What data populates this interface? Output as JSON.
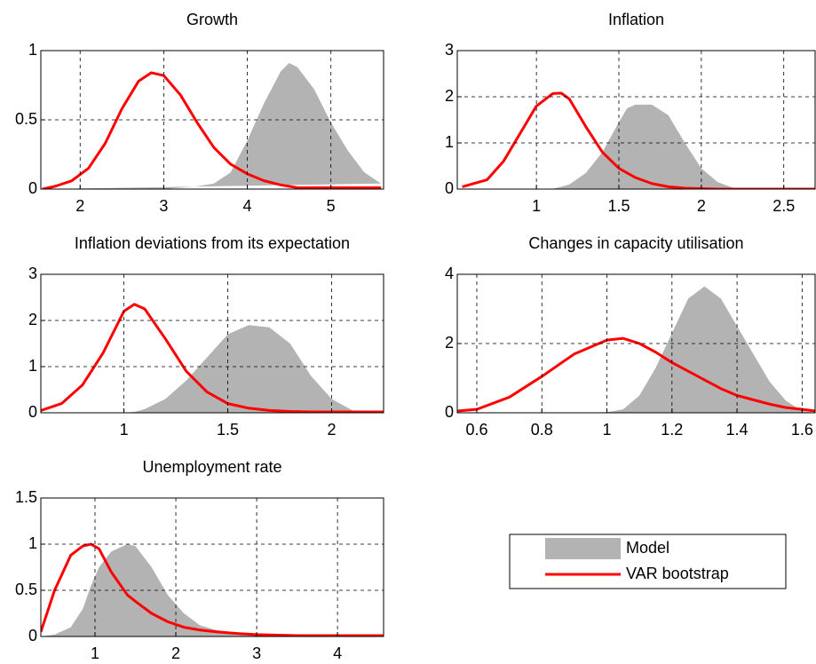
{
  "chart_data": [
    {
      "type": "line",
      "title": "Growth",
      "x": [
        1.55,
        1.7,
        1.9,
        2.1,
        2.3,
        2.5,
        2.7,
        2.85,
        3.0,
        3.2,
        3.4,
        3.6,
        3.8,
        4.0,
        4.2,
        4.4,
        4.5,
        4.6,
        4.8,
        5.0,
        5.2,
        5.4,
        5.6
      ],
      "series": [
        {
          "name": "Model",
          "color": "#b3b3b3",
          "kind": "area",
          "values": [
            0,
            0,
            0,
            0,
            0,
            0,
            0,
            0,
            0,
            0.01,
            0.02,
            0.04,
            0.12,
            0.35,
            0.62,
            0.85,
            0.91,
            0.88,
            0.72,
            0.48,
            0.28,
            0.12,
            0.04
          ]
        },
        {
          "name": "VAR bootstrap",
          "color": "#ff0000",
          "kind": "line",
          "values": [
            0,
            0.02,
            0.06,
            0.15,
            0.33,
            0.58,
            0.78,
            0.84,
            0.82,
            0.68,
            0.48,
            0.3,
            0.18,
            0.11,
            0.06,
            0.03,
            0.02,
            0.01,
            0.01,
            0.01,
            0.01,
            0.01,
            0.01
          ]
        }
      ],
      "xlim": [
        1.53,
        5.63
      ],
      "xticks": [
        2,
        3,
        4,
        5
      ],
      "ylim": [
        0,
        1
      ],
      "yticks": [
        0,
        0.5,
        1
      ],
      "grid": true
    },
    {
      "type": "line",
      "title": "Inflation",
      "x": [
        0.55,
        0.7,
        0.8,
        0.9,
        1.0,
        1.1,
        1.15,
        1.2,
        1.3,
        1.4,
        1.5,
        1.55,
        1.6,
        1.7,
        1.8,
        1.9,
        2.0,
        2.1,
        2.2,
        2.4,
        2.69
      ],
      "series": [
        {
          "name": "Model",
          "color": "#b3b3b3",
          "kind": "area",
          "values": [
            0,
            0,
            0,
            0,
            0,
            0.01,
            0.05,
            0.1,
            0.35,
            0.8,
            1.45,
            1.75,
            1.83,
            1.83,
            1.6,
            1.0,
            0.45,
            0.15,
            0.02,
            0,
            0
          ]
        },
        {
          "name": "VAR bootstrap",
          "color": "#ff0000",
          "kind": "line",
          "values": [
            0.05,
            0.2,
            0.6,
            1.2,
            1.8,
            2.07,
            2.08,
            1.95,
            1.35,
            0.8,
            0.45,
            0.35,
            0.25,
            0.12,
            0.05,
            0.02,
            0.01,
            0,
            0,
            0,
            0
          ]
        }
      ],
      "xlim": [
        0.52,
        2.69
      ],
      "xticks": [
        1,
        1.5,
        2,
        2.5
      ],
      "ylim": [
        0,
        3
      ],
      "yticks": [
        0,
        1,
        2,
        3
      ],
      "grid": true
    },
    {
      "type": "line",
      "title": "Inflation deviations from its expectation",
      "x": [
        0.6,
        0.7,
        0.8,
        0.9,
        1.0,
        1.05,
        1.1,
        1.2,
        1.3,
        1.4,
        1.5,
        1.6,
        1.7,
        1.8,
        1.9,
        2.0,
        2.1,
        2.25
      ],
      "series": [
        {
          "name": "Model",
          "color": "#b3b3b3",
          "kind": "area",
          "values": [
            0,
            0,
            0,
            0,
            0,
            0.02,
            0.08,
            0.3,
            0.7,
            1.2,
            1.7,
            1.9,
            1.85,
            1.5,
            0.8,
            0.3,
            0.05,
            0
          ]
        },
        {
          "name": "VAR bootstrap",
          "color": "#ff0000",
          "kind": "line",
          "values": [
            0.05,
            0.2,
            0.6,
            1.3,
            2.2,
            2.35,
            2.25,
            1.6,
            0.9,
            0.45,
            0.2,
            0.1,
            0.05,
            0.03,
            0.02,
            0.02,
            0.02,
            0.02
          ]
        }
      ],
      "xlim": [
        0.6,
        2.25
      ],
      "xticks": [
        1,
        1.5,
        2
      ],
      "ylim": [
        0,
        3
      ],
      "yticks": [
        0,
        1,
        2,
        3
      ],
      "grid": true
    },
    {
      "type": "line",
      "title": "Changes in capacity utilisation",
      "x": [
        0.54,
        0.6,
        0.7,
        0.8,
        0.9,
        1.0,
        1.05,
        1.1,
        1.15,
        1.2,
        1.25,
        1.3,
        1.35,
        1.4,
        1.5,
        1.55,
        1.6,
        1.64
      ],
      "series": [
        {
          "name": "Model",
          "color": "#b3b3b3",
          "kind": "area",
          "values": [
            0,
            0,
            0,
            0,
            0,
            0.02,
            0.1,
            0.5,
            1.3,
            2.3,
            3.3,
            3.65,
            3.3,
            2.5,
            0.9,
            0.35,
            0.05,
            0
          ]
        },
        {
          "name": "VAR bootstrap",
          "color": "#ff0000",
          "kind": "line",
          "values": [
            0.05,
            0.1,
            0.45,
            1.05,
            1.7,
            2.1,
            2.15,
            2.0,
            1.75,
            1.45,
            1.2,
            0.95,
            0.7,
            0.5,
            0.25,
            0.15,
            0.1,
            0.05
          ]
        }
      ],
      "xlim": [
        0.54,
        1.64
      ],
      "xticks": [
        0.6,
        0.8,
        1,
        1.2,
        1.4,
        1.6
      ],
      "ylim": [
        0,
        4
      ],
      "yticks": [
        0,
        2,
        4
      ],
      "grid": true
    },
    {
      "type": "line",
      "title": "Unemployment rate",
      "x": [
        0.33,
        0.5,
        0.7,
        0.85,
        0.95,
        1.05,
        1.2,
        1.4,
        1.5,
        1.7,
        1.9,
        2.1,
        2.3,
        2.5,
        2.8,
        3.0,
        3.5,
        4.57
      ],
      "series": [
        {
          "name": "Model",
          "color": "#b3b3b3",
          "kind": "area",
          "values": [
            0,
            0.02,
            0.1,
            0.3,
            0.55,
            0.75,
            0.92,
            1.0,
            0.98,
            0.75,
            0.45,
            0.25,
            0.12,
            0.07,
            0.03,
            0.01,
            0,
            0
          ]
        },
        {
          "name": "VAR bootstrap",
          "color": "#ff0000",
          "kind": "line",
          "values": [
            0.05,
            0.5,
            0.88,
            0.98,
            1.0,
            0.95,
            0.7,
            0.45,
            0.38,
            0.25,
            0.16,
            0.1,
            0.07,
            0.05,
            0.03,
            0.02,
            0.01,
            0.01
          ]
        }
      ],
      "xlim": [
        0.33,
        4.57
      ],
      "xticks": [
        1,
        2,
        3,
        4
      ],
      "ylim": [
        0,
        1.5
      ],
      "yticks": [
        0,
        0.5,
        1,
        1.5
      ],
      "grid": true,
      "legend": "outside-right"
    }
  ]
}
